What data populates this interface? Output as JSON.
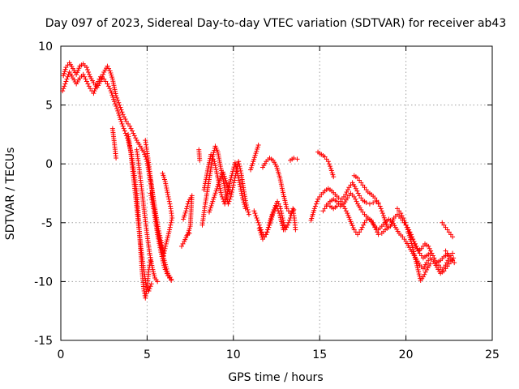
{
  "chart_data": {
    "type": "scatter",
    "title": "Day 097 of 2023, Sidereal Day-to-day VTEC variation (SDTVAR) for receiver ab43",
    "xlabel": "GPS time / hours",
    "ylabel": "SDTVAR / TECUs",
    "xlim": [
      0,
      25
    ],
    "ylim": [
      -15,
      10
    ],
    "xticks": [
      0,
      5,
      10,
      15,
      20,
      25
    ],
    "yticks": [
      -15,
      -10,
      -5,
      0,
      5,
      10
    ],
    "grid": true,
    "marker": "+",
    "series_color": "#ff0000",
    "tracks": [
      [
        [
          0.15,
          7.5
        ],
        [
          0.3,
          8.2
        ],
        [
          0.5,
          8.6
        ],
        [
          0.7,
          8.1
        ],
        [
          0.9,
          7.6
        ],
        [
          1.1,
          8.3
        ],
        [
          1.3,
          8.5
        ],
        [
          1.5,
          8.2
        ],
        [
          1.7,
          7.4
        ],
        [
          1.9,
          6.9
        ],
        [
          2.1,
          6.5
        ],
        [
          2.3,
          7.0
        ],
        [
          2.5,
          7.8
        ],
        [
          2.7,
          8.3
        ],
        [
          2.85,
          7.9
        ],
        [
          3.0,
          7.2
        ],
        [
          3.2,
          5.8
        ],
        [
          3.4,
          5.0
        ],
        [
          3.6,
          4.2
        ],
        [
          3.8,
          3.6
        ],
        [
          4.0,
          3.2
        ],
        [
          4.2,
          2.6
        ],
        [
          4.4,
          2.0
        ],
        [
          4.6,
          1.5
        ],
        [
          4.8,
          1.0
        ],
        [
          5.0,
          0.2
        ],
        [
          5.2,
          -1.5
        ],
        [
          5.4,
          -3.5
        ],
        [
          5.6,
          -5.5
        ],
        [
          5.8,
          -7.0
        ],
        [
          6.0,
          -8.2
        ],
        [
          6.2,
          -9.3
        ],
        [
          6.4,
          -9.8
        ]
      ],
      [
        [
          0.1,
          6.2
        ],
        [
          0.3,
          7.0
        ],
        [
          0.5,
          7.8
        ],
        [
          0.7,
          7.3
        ],
        [
          0.9,
          6.8
        ],
        [
          1.1,
          7.3
        ],
        [
          1.3,
          7.6
        ],
        [
          1.5,
          7.0
        ],
        [
          1.7,
          6.4
        ],
        [
          1.9,
          6.0
        ],
        [
          2.1,
          6.8
        ],
        [
          2.3,
          7.4
        ],
        [
          2.5,
          7.2
        ],
        [
          2.7,
          6.8
        ],
        [
          2.9,
          6.2
        ],
        [
          3.1,
          5.3
        ],
        [
          3.3,
          4.5
        ],
        [
          3.5,
          3.6
        ],
        [
          3.7,
          2.8
        ],
        [
          3.9,
          2.0
        ],
        [
          4.1,
          0.8
        ],
        [
          4.25,
          -0.8
        ],
        [
          4.4,
          -2.5
        ],
        [
          4.5,
          -4.5
        ],
        [
          4.6,
          -6.8
        ],
        [
          4.7,
          -9.0
        ],
        [
          4.8,
          -10.6
        ],
        [
          4.9,
          -11.4
        ],
        [
          5.0,
          -10.5
        ],
        [
          5.1,
          -9.0
        ],
        [
          5.2,
          -8.2
        ]
      ],
      [
        [
          3.0,
          3.0
        ],
        [
          3.1,
          1.8
        ],
        [
          3.2,
          0.5
        ]
      ],
      [
        [
          3.9,
          2.5
        ],
        [
          4.05,
          1.0
        ],
        [
          4.2,
          -1.0
        ],
        [
          4.35,
          -3.0
        ],
        [
          4.5,
          -5.2
        ],
        [
          4.65,
          -7.2
        ],
        [
          4.8,
          -9.0
        ],
        [
          4.95,
          -10.3
        ],
        [
          5.1,
          -10.8
        ],
        [
          5.25,
          -10.2
        ]
      ],
      [
        [
          4.4,
          1.2
        ],
        [
          4.55,
          -0.5
        ],
        [
          4.7,
          -2.3
        ],
        [
          4.85,
          -4.2
        ],
        [
          5.0,
          -6.0
        ],
        [
          5.15,
          -7.6
        ],
        [
          5.3,
          -8.8
        ],
        [
          5.45,
          -9.7
        ],
        [
          5.6,
          -10.0
        ]
      ],
      [
        [
          4.9,
          2.0
        ],
        [
          5.05,
          0.5
        ],
        [
          5.2,
          -1.2
        ],
        [
          5.35,
          -2.8
        ],
        [
          5.5,
          -4.2
        ],
        [
          5.65,
          -5.5
        ],
        [
          5.8,
          -6.5
        ],
        [
          5.95,
          -7.5
        ]
      ],
      [
        [
          5.2,
          -2.5
        ],
        [
          5.4,
          -4.0
        ],
        [
          5.6,
          -6.0
        ],
        [
          5.8,
          -7.5
        ],
        [
          6.0,
          -8.8
        ],
        [
          6.2,
          -9.5
        ],
        [
          6.4,
          -9.9
        ]
      ],
      [
        [
          5.9,
          -0.8
        ],
        [
          6.05,
          -1.5
        ],
        [
          6.2,
          -2.6
        ],
        [
          6.35,
          -3.6
        ],
        [
          6.45,
          -4.6
        ],
        [
          6.3,
          -5.6
        ],
        [
          6.1,
          -6.8
        ],
        [
          5.95,
          -7.8
        ]
      ],
      [
        [
          7.1,
          -4.7
        ],
        [
          7.25,
          -4.0
        ],
        [
          7.4,
          -3.2
        ],
        [
          7.6,
          -2.7
        ],
        [
          7.5,
          -5.3
        ],
        [
          7.35,
          -6.0
        ]
      ],
      [
        [
          7.0,
          -7.0
        ],
        [
          7.15,
          -6.6
        ],
        [
          7.3,
          -6.1
        ],
        [
          7.45,
          -5.9
        ]
      ],
      [
        [
          8.0,
          1.2
        ],
        [
          8.05,
          0.3
        ]
      ],
      [
        [
          8.2,
          -5.2
        ],
        [
          8.35,
          -3.6
        ],
        [
          8.5,
          -2.2
        ],
        [
          8.65,
          -0.8
        ],
        [
          8.8,
          0.6
        ],
        [
          8.95,
          1.5
        ],
        [
          9.1,
          1.0
        ],
        [
          9.25,
          -0.2
        ],
        [
          9.4,
          -1.3
        ],
        [
          9.55,
          -2.4
        ],
        [
          9.7,
          -3.4
        ],
        [
          9.85,
          -2.8
        ],
        [
          10.0,
          -1.8
        ],
        [
          10.15,
          -0.8
        ],
        [
          10.3,
          0.2
        ],
        [
          10.45,
          -0.8
        ],
        [
          10.6,
          -2.2
        ],
        [
          10.75,
          -3.5
        ],
        [
          10.9,
          -4.3
        ]
      ],
      [
        [
          8.3,
          -2.2
        ],
        [
          8.5,
          -0.6
        ],
        [
          8.7,
          0.8
        ],
        [
          8.9,
          0.2
        ],
        [
          9.1,
          -1.2
        ],
        [
          9.3,
          -2.6
        ],
        [
          9.5,
          -3.4
        ],
        [
          9.7,
          -2.2
        ],
        [
          9.9,
          -1.0
        ],
        [
          10.1,
          0.1
        ],
        [
          10.3,
          -1.2
        ],
        [
          10.5,
          -2.7
        ],
        [
          10.7,
          -3.8
        ]
      ],
      [
        [
          8.6,
          -4.1
        ],
        [
          8.8,
          -3.2
        ],
        [
          9.0,
          -2.3
        ],
        [
          9.2,
          -1.4
        ],
        [
          9.4,
          -0.7
        ],
        [
          9.6,
          -1.6
        ],
        [
          9.8,
          -2.5
        ]
      ],
      [
        [
          11.0,
          -0.5
        ],
        [
          11.15,
          0.2
        ],
        [
          11.3,
          0.9
        ],
        [
          11.45,
          1.6
        ]
      ],
      [
        [
          11.2,
          -4.0
        ],
        [
          11.35,
          -4.6
        ],
        [
          11.5,
          -5.2
        ],
        [
          11.65,
          -5.8
        ],
        [
          11.8,
          -6.2
        ],
        [
          11.95,
          -5.8
        ],
        [
          12.1,
          -5.0
        ],
        [
          12.25,
          -4.3
        ],
        [
          12.4,
          -3.7
        ],
        [
          12.55,
          -3.2
        ],
        [
          12.7,
          -3.6
        ],
        [
          12.85,
          -4.6
        ],
        [
          13.0,
          -5.6
        ],
        [
          13.15,
          -5.2
        ],
        [
          13.3,
          -4.6
        ],
        [
          13.45,
          -3.8
        ],
        [
          13.55,
          -4.8
        ],
        [
          13.6,
          -5.6
        ]
      ],
      [
        [
          11.5,
          -5.5
        ],
        [
          11.7,
          -6.4
        ],
        [
          11.9,
          -6.0
        ],
        [
          12.1,
          -5.2
        ],
        [
          12.3,
          -4.2
        ],
        [
          12.5,
          -3.6
        ],
        [
          12.7,
          -4.4
        ],
        [
          12.9,
          -5.6
        ],
        [
          13.05,
          -5.3
        ]
      ],
      [
        [
          11.7,
          -0.3
        ],
        [
          11.9,
          0.2
        ],
        [
          12.1,
          0.5
        ],
        [
          12.3,
          0.3
        ],
        [
          12.5,
          -0.2
        ],
        [
          12.7,
          -1.2
        ],
        [
          12.9,
          -2.6
        ],
        [
          13.1,
          -3.8
        ],
        [
          13.3,
          -4.2
        ],
        [
          13.5,
          -3.9
        ]
      ],
      [
        [
          13.3,
          0.3
        ],
        [
          13.5,
          0.5
        ],
        [
          13.7,
          0.4
        ]
      ],
      [
        [
          14.9,
          1.0
        ],
        [
          15.1,
          0.8
        ],
        [
          15.3,
          0.6
        ],
        [
          15.5,
          0.2
        ],
        [
          15.65,
          -0.4
        ],
        [
          15.8,
          -1.1
        ]
      ],
      [
        [
          14.5,
          -4.8
        ],
        [
          14.7,
          -3.8
        ],
        [
          14.9,
          -3.0
        ],
        [
          15.1,
          -2.6
        ],
        [
          15.3,
          -2.3
        ],
        [
          15.5,
          -2.1
        ],
        [
          15.7,
          -2.3
        ],
        [
          15.9,
          -2.6
        ],
        [
          16.1,
          -2.9
        ],
        [
          16.3,
          -3.0
        ],
        [
          16.5,
          -2.6
        ],
        [
          16.7,
          -2.0
        ],
        [
          16.9,
          -1.6
        ],
        [
          17.1,
          -2.1
        ],
        [
          17.3,
          -2.7
        ],
        [
          17.5,
          -3.1
        ],
        [
          17.7,
          -3.3
        ],
        [
          17.9,
          -3.4
        ],
        [
          18.1,
          -3.3
        ],
        [
          18.3,
          -3.2
        ],
        [
          18.5,
          -3.6
        ],
        [
          18.7,
          -4.4
        ],
        [
          18.9,
          -5.3
        ],
        [
          19.1,
          -5.3
        ],
        [
          19.3,
          -4.6
        ],
        [
          19.5,
          -4.3
        ],
        [
          19.7,
          -4.6
        ],
        [
          19.9,
          -5.0
        ],
        [
          20.1,
          -5.4
        ],
        [
          20.3,
          -6.0
        ],
        [
          20.5,
          -6.8
        ],
        [
          20.7,
          -7.4
        ],
        [
          20.9,
          -7.2
        ],
        [
          21.1,
          -6.8
        ],
        [
          21.3,
          -7.0
        ],
        [
          21.5,
          -7.6
        ],
        [
          21.7,
          -8.2
        ],
        [
          21.9,
          -8.6
        ],
        [
          22.1,
          -9.0
        ],
        [
          22.3,
          -8.6
        ],
        [
          22.5,
          -8.0
        ],
        [
          22.7,
          -7.6
        ]
      ],
      [
        [
          15.4,
          -3.5
        ],
        [
          15.6,
          -3.2
        ],
        [
          15.8,
          -3.0
        ],
        [
          16.0,
          -3.2
        ],
        [
          16.2,
          -3.6
        ],
        [
          16.4,
          -3.4
        ],
        [
          16.6,
          -2.9
        ],
        [
          16.8,
          -2.5
        ],
        [
          17.0,
          -2.8
        ],
        [
          17.2,
          -3.4
        ],
        [
          17.4,
          -3.9
        ],
        [
          17.6,
          -4.3
        ],
        [
          17.8,
          -4.6
        ],
        [
          18.0,
          -4.9
        ],
        [
          18.2,
          -5.3
        ],
        [
          18.4,
          -5.6
        ],
        [
          18.6,
          -5.3
        ],
        [
          18.8,
          -5.0
        ],
        [
          19.0,
          -4.7
        ],
        [
          19.2,
          -4.9
        ],
        [
          19.4,
          -5.4
        ],
        [
          19.6,
          -5.9
        ],
        [
          19.8,
          -6.2
        ],
        [
          20.0,
          -6.6
        ],
        [
          20.2,
          -7.1
        ],
        [
          20.4,
          -7.6
        ],
        [
          20.6,
          -8.1
        ],
        [
          20.8,
          -8.6
        ],
        [
          21.0,
          -8.9
        ],
        [
          21.2,
          -8.4
        ],
        [
          21.4,
          -8.0
        ],
        [
          21.6,
          -8.3
        ],
        [
          21.8,
          -8.8
        ],
        [
          22.0,
          -9.3
        ],
        [
          22.2,
          -9.1
        ],
        [
          22.4,
          -8.7
        ],
        [
          22.6,
          -8.3
        ],
        [
          22.75,
          -8.0
        ]
      ],
      [
        [
          15.2,
          -4.0
        ],
        [
          15.4,
          -3.6
        ],
        [
          15.6,
          -3.6
        ],
        [
          15.8,
          -3.8
        ],
        [
          16.0,
          -3.6
        ],
        [
          16.2,
          -3.2
        ],
        [
          16.4,
          -3.6
        ],
        [
          16.6,
          -4.2
        ],
        [
          16.8,
          -4.9
        ],
        [
          17.0,
          -5.6
        ],
        [
          17.2,
          -6.0
        ],
        [
          17.4,
          -5.6
        ],
        [
          17.6,
          -5.0
        ],
        [
          17.8,
          -4.6
        ],
        [
          18.0,
          -4.8
        ],
        [
          18.2,
          -5.4
        ],
        [
          18.4,
          -6.0
        ],
        [
          18.6,
          -5.9
        ],
        [
          18.8,
          -5.6
        ],
        [
          19.0,
          -5.4
        ]
      ],
      [
        [
          17.0,
          -1.0
        ],
        [
          17.2,
          -1.2
        ],
        [
          17.4,
          -1.6
        ],
        [
          17.6,
          -2.0
        ],
        [
          17.8,
          -2.4
        ],
        [
          18.0,
          -2.6
        ],
        [
          18.2,
          -2.9
        ],
        [
          18.4,
          -3.3
        ]
      ],
      [
        [
          19.5,
          -3.8
        ],
        [
          19.7,
          -4.2
        ],
        [
          19.9,
          -4.8
        ],
        [
          20.1,
          -5.6
        ],
        [
          20.3,
          -6.6
        ],
        [
          20.5,
          -7.8
        ],
        [
          20.7,
          -9.0
        ],
        [
          20.85,
          -9.9
        ],
        [
          21.0,
          -9.6
        ],
        [
          21.2,
          -9.0
        ],
        [
          21.4,
          -8.5
        ]
      ],
      [
        [
          20.2,
          -5.8
        ],
        [
          20.4,
          -6.4
        ],
        [
          20.6,
          -7.0
        ],
        [
          20.8,
          -7.6
        ],
        [
          21.0,
          -8.0
        ],
        [
          21.2,
          -7.8
        ],
        [
          21.4,
          -7.6
        ]
      ],
      [
        [
          21.8,
          -8.4
        ],
        [
          22.0,
          -8.2
        ],
        [
          22.2,
          -7.9
        ],
        [
          22.4,
          -7.7
        ],
        [
          22.6,
          -8.0
        ],
        [
          22.8,
          -8.4
        ]
      ],
      [
        [
          22.1,
          -5.0
        ],
        [
          22.3,
          -5.4
        ],
        [
          22.5,
          -5.8
        ],
        [
          22.7,
          -6.2
        ]
      ],
      [
        [
          22.3,
          -7.4
        ],
        [
          22.5,
          -7.8
        ],
        [
          22.7,
          -8.2
        ]
      ]
    ]
  }
}
